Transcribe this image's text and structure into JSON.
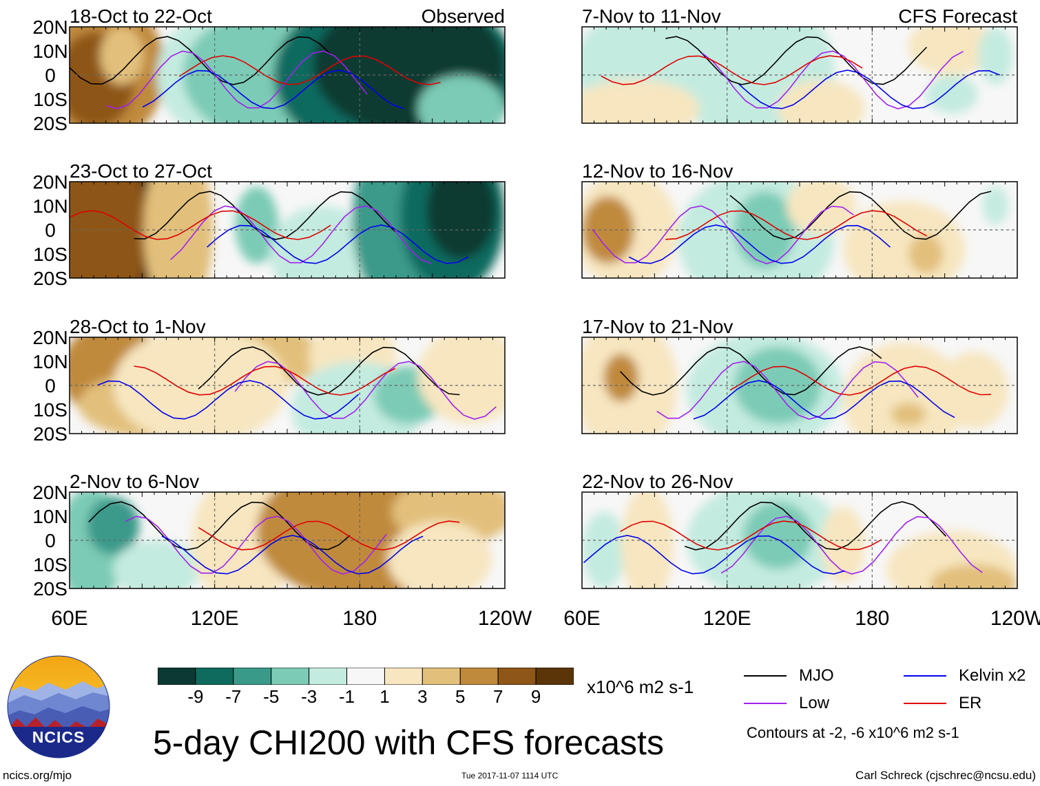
{
  "figure": {
    "title": "5-day CHI200 with CFS forecasts",
    "site": "ncics.org/mjo",
    "timestamp": "Tue 2017-11-07 1114 UTC",
    "author": "Carl Schreck (cjschrec@ncsu.edu)",
    "logo_text": "NCICS"
  },
  "chart_data": {
    "type": "heatmap",
    "variable": "CHI200 anomaly",
    "units": "x10^6 m2 s-1",
    "x_ticks": [
      "60E",
      "120E",
      "180",
      "120W"
    ],
    "y_ticks": [
      "20N",
      "10N",
      "0",
      "10S",
      "20S"
    ],
    "columns": [
      {
        "header": "Observed",
        "panels": [
          "18-Oct to 22-Oct",
          "23-Oct to 27-Oct",
          "28-Oct to 1-Nov",
          "2-Nov to 6-Nov"
        ]
      },
      {
        "header": "CFS Forecast",
        "panels": [
          "7-Nov to 11-Nov",
          "12-Nov to 16-Nov",
          "17-Nov to 21-Nov",
          "22-Nov to 26-Nov"
        ]
      }
    ],
    "colorbar": {
      "levels": [
        "-9",
        "-7",
        "-5",
        "-3",
        "-1",
        "1",
        "3",
        "5",
        "7",
        "9"
      ],
      "colors": [
        "#0b3a32",
        "#0f6b5e",
        "#3a9a8a",
        "#7ccbb6",
        "#c4ebe0",
        "#f7f7f7",
        "#f7e6c0",
        "#e2c07c",
        "#c08a3c",
        "#8e5617",
        "#5a3508"
      ]
    },
    "legend": {
      "items": [
        {
          "label": "MJO",
          "color": "#000000"
        },
        {
          "label": "Kelvin x2",
          "color": "#0000ee"
        },
        {
          "label": "Low",
          "color": "#a020f0"
        },
        {
          "label": "ER",
          "color": "#e00000"
        }
      ],
      "note": "Contours at -2, -6 x10^6 m2 s-1"
    }
  }
}
